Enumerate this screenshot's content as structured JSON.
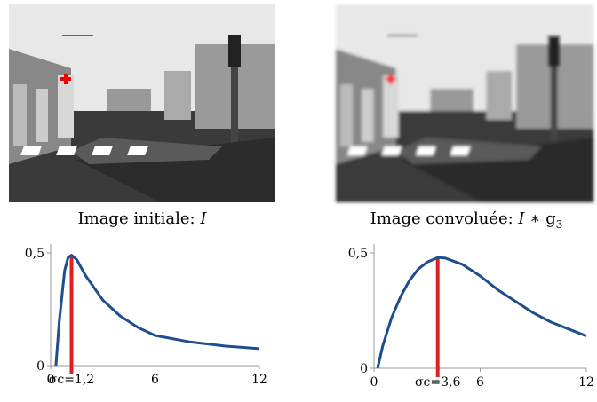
{
  "captions": [
    {
      "text": "Image initiale: ",
      "symbol": "I"
    },
    {
      "text": "Image convoluée: ",
      "symbol": "I",
      "operator": " ∗ g",
      "subscript": "3"
    }
  ],
  "chart_data": [
    {
      "type": "line",
      "color": "#1f4e8c",
      "line_width": 3,
      "x": [
        0.3,
        0.5,
        0.8,
        1.0,
        1.2,
        1.5,
        2,
        3,
        4,
        5,
        6,
        8,
        10,
        12
      ],
      "values": [
        0,
        0.2,
        0.42,
        0.48,
        0.49,
        0.47,
        0.4,
        0.29,
        0.22,
        0.17,
        0.134,
        0.105,
        0.087,
        0.075
      ],
      "xlim": [
        0,
        12
      ],
      "ylim": [
        0,
        0.5
      ],
      "xticks": [
        0,
        6,
        12
      ],
      "yticks": [
        0,
        {
          "value": 0.5,
          "label": "0,5"
        }
      ],
      "marker_x": 1.2,
      "marker_label": "σc=1,2",
      "marker_color": "#e02020"
    },
    {
      "type": "line",
      "color": "#1f4e8c",
      "line_width": 3,
      "x": [
        0.2,
        0.5,
        1,
        1.5,
        2,
        2.5,
        3,
        3.6,
        4,
        5,
        6,
        7,
        8,
        9,
        10,
        11,
        12
      ],
      "values": [
        0,
        0.1,
        0.22,
        0.31,
        0.38,
        0.43,
        0.46,
        0.48,
        0.478,
        0.45,
        0.4,
        0.34,
        0.29,
        0.24,
        0.2,
        0.17,
        0.14
      ],
      "xlim": [
        0,
        12
      ],
      "ylim": [
        0,
        0.5
      ],
      "xticks": [
        0,
        6,
        12
      ],
      "yticks": [
        0,
        {
          "value": 0.5,
          "label": "0,5"
        }
      ],
      "marker_x": 3.6,
      "marker_label": "σc=3,6",
      "marker_color": "#e02020"
    }
  ]
}
